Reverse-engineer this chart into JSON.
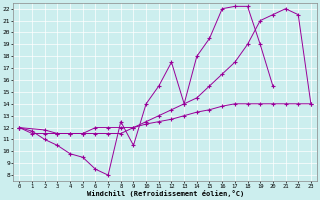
{
  "xlabel": "Windchill (Refroidissement éolien,°C)",
  "xlim": [
    -0.5,
    23.5
  ],
  "ylim": [
    7.5,
    22.5
  ],
  "xticks": [
    0,
    1,
    2,
    3,
    4,
    5,
    6,
    7,
    8,
    9,
    10,
    11,
    12,
    13,
    14,
    15,
    16,
    17,
    18,
    19,
    20,
    21,
    22,
    23
  ],
  "yticks": [
    8,
    9,
    10,
    11,
    12,
    13,
    14,
    15,
    16,
    17,
    18,
    19,
    20,
    21,
    22
  ],
  "line_color": "#990099",
  "bg_color": "#cceeee",
  "grid_color": "#aadddd",
  "line1_x": [
    0,
    1,
    2,
    3,
    4,
    5,
    6,
    7,
    8,
    9,
    10,
    11,
    12,
    13,
    14,
    15,
    16,
    17,
    18,
    19,
    20
  ],
  "line1_y": [
    12,
    11.7,
    11.0,
    10.5,
    9.8,
    9.5,
    8.5,
    8.0,
    12.5,
    10.5,
    14.0,
    15.5,
    17.5,
    14.0,
    18.0,
    19.5,
    22.0,
    22.2,
    22.2,
    19.0,
    15.5
  ],
  "line2_x": [
    0,
    2,
    3,
    4,
    5,
    6,
    7,
    8,
    9,
    10,
    11,
    12,
    13,
    14,
    15,
    16,
    17,
    18,
    19,
    20,
    21,
    22,
    23
  ],
  "line2_y": [
    12,
    11.8,
    11.5,
    11.5,
    11.5,
    11.5,
    11.5,
    11.5,
    12.0,
    12.5,
    13.0,
    13.5,
    14.0,
    14.5,
    15.5,
    16.5,
    17.5,
    19.0,
    21.0,
    21.5,
    22.0,
    21.5,
    14.0
  ],
  "line3_x": [
    0,
    1,
    2,
    3,
    4,
    5,
    6,
    7,
    8,
    9,
    10,
    11,
    12,
    13,
    14,
    15,
    16,
    17,
    18,
    19,
    20,
    21,
    22,
    23
  ],
  "line3_y": [
    12,
    11.5,
    11.5,
    11.5,
    11.5,
    11.5,
    12.0,
    12.0,
    12.0,
    12.0,
    12.3,
    12.5,
    12.7,
    13.0,
    13.3,
    13.5,
    13.8,
    14.0,
    14.0,
    14.0,
    14.0,
    14.0,
    14.0,
    14.0
  ]
}
